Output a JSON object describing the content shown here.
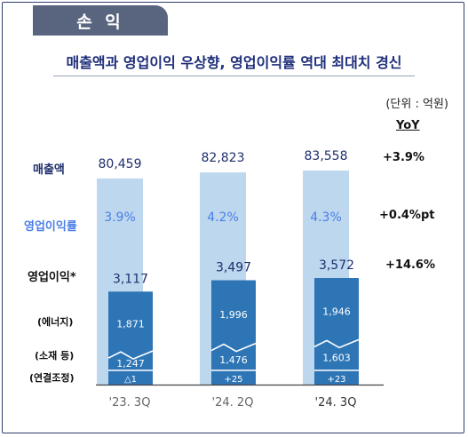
{
  "section_tab": "손 익",
  "headline": "매출액과 영업이익 우상향, 영업이익률 역대 최대치 경신",
  "unit_note": "(단위 : 억원)",
  "yoy": {
    "header": "YoY",
    "revenue": "+3.9%",
    "margin": "+0.4%pt",
    "operating_profit": "+14.6%"
  },
  "row_labels": {
    "revenue": "매출액",
    "margin": "영업이익률",
    "operating_profit": "영업이익*",
    "energy": "(에너지)",
    "materials": "(소재 등)",
    "consolidation": "(연결조정)"
  },
  "colors": {
    "revenue_bar": "#bdd7ee",
    "profit_bar": "#2e75b6",
    "margin_text": "#4a7ee6",
    "navy_text": "#1f2f6e"
  },
  "chart_data": {
    "type": "bar",
    "categories": [
      "'23. 3Q",
      "'24. 2Q",
      "'24. 3Q"
    ],
    "series": [
      {
        "name": "매출액",
        "values": [
          80459,
          82823,
          83558
        ],
        "labels": [
          "80,459",
          "82,823",
          "83,558"
        ]
      },
      {
        "name": "영업이익률",
        "values": [
          3.9,
          4.2,
          4.3
        ],
        "labels": [
          "3.9%",
          "4.2%",
          "4.3%"
        ]
      },
      {
        "name": "영업이익*",
        "values": [
          3117,
          3497,
          3572
        ],
        "labels": [
          "3,117",
          "3,497",
          "3,572"
        ]
      },
      {
        "name": "(에너지)",
        "values": [
          1871,
          1996,
          1946
        ],
        "labels": [
          "1,871",
          "1,996",
          "1,946"
        ]
      },
      {
        "name": "(소재 등)",
        "values": [
          1247,
          1476,
          1603
        ],
        "labels": [
          "1,247",
          "1,476",
          "1,603"
        ]
      },
      {
        "name": "(연결조정)",
        "values": [
          -1,
          25,
          23
        ],
        "labels": [
          "△1",
          "+25",
          "+23"
        ]
      }
    ]
  }
}
